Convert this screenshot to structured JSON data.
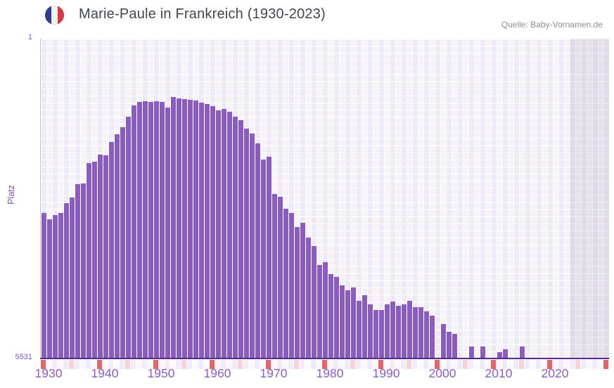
{
  "header": {
    "title": "Marie-Paule in Frankreich (1930-2023)",
    "source": "Quelle: Baby-Vornamen.de",
    "flag_icon": "france-flag"
  },
  "chart_data": {
    "type": "bar",
    "title": "Marie-Paule in Frankreich (1930-2023)",
    "xlabel": "",
    "ylabel": "Platz",
    "y_axis_inverted": true,
    "ylim": [
      1,
      5531
    ],
    "y_top_label": "1",
    "y_bottom_label": "5531",
    "x_axis_range": [
      1930,
      2030
    ],
    "x_axis_ticks": [
      1930,
      1940,
      1950,
      1960,
      1970,
      1980,
      1990,
      2000,
      2010,
      2020
    ],
    "shaded_no_data_years": [
      2024,
      2030
    ],
    "legend": "none",
    "grid": "checkered-lavender",
    "years": [
      1930,
      1931,
      1932,
      1933,
      1934,
      1935,
      1936,
      1937,
      1938,
      1939,
      1940,
      1941,
      1942,
      1943,
      1944,
      1945,
      1946,
      1947,
      1948,
      1949,
      1950,
      1951,
      1952,
      1953,
      1954,
      1955,
      1956,
      1957,
      1958,
      1959,
      1960,
      1961,
      1962,
      1963,
      1964,
      1965,
      1966,
      1967,
      1968,
      1969,
      1970,
      1971,
      1972,
      1973,
      1974,
      1975,
      1976,
      1977,
      1978,
      1979,
      1980,
      1981,
      1982,
      1983,
      1984,
      1985,
      1986,
      1987,
      1988,
      1989,
      1990,
      1991,
      1992,
      1993,
      1994,
      1995,
      1996,
      1997,
      1998,
      1999,
      2000,
      2001,
      2002,
      2003,
      2004,
      2005,
      2006,
      2007,
      2008,
      2009,
      2010,
      2011,
      2012,
      2013,
      2014,
      2015,
      2016,
      2017,
      2018,
      2019,
      2020,
      2021,
      2022,
      2023
    ],
    "ranks": [
      3015,
      3124,
      3051,
      3015,
      2845,
      2748,
      2517,
      2505,
      2152,
      2128,
      2006,
      2018,
      1788,
      1654,
      1532,
      1350,
      1156,
      1095,
      1083,
      1095,
      1083,
      1095,
      1192,
      1010,
      1034,
      1046,
      1058,
      1071,
      1107,
      1131,
      1168,
      1241,
      1216,
      1265,
      1350,
      1411,
      1557,
      1642,
      1812,
      2091,
      2043,
      2687,
      2735,
      2942,
      3015,
      3258,
      3185,
      3440,
      3586,
      3914,
      3865,
      4072,
      4121,
      4266,
      4352,
      4303,
      4534,
      4437,
      4595,
      4692,
      4692,
      4595,
      4546,
      4619,
      4595,
      4534,
      4643,
      4643,
      4716,
      4789,
      null,
      4935,
      5069,
      5105,
      null,
      null,
      5324,
      null,
      5324,
      null,
      null,
      5421,
      5373,
      null,
      null,
      5324,
      null,
      null,
      null,
      null,
      null,
      null,
      null,
      null
    ],
    "colors": {
      "bar": "#8e59c6",
      "axis_line": "#552b8c",
      "tick_label": "#8a5ec5",
      "y_label": "#7e57b8",
      "plot_bg_light": "#f6f2fa",
      "plot_bg_dark": "#efe9f7",
      "strip_decade": "#e0666d",
      "strip_half_decade": "#f5d3da",
      "strip_even": "#f0ebf8",
      "strip_odd": "#faf7fd",
      "flag_blue": "#2e3b97",
      "flag_red": "#d63a47"
    }
  }
}
